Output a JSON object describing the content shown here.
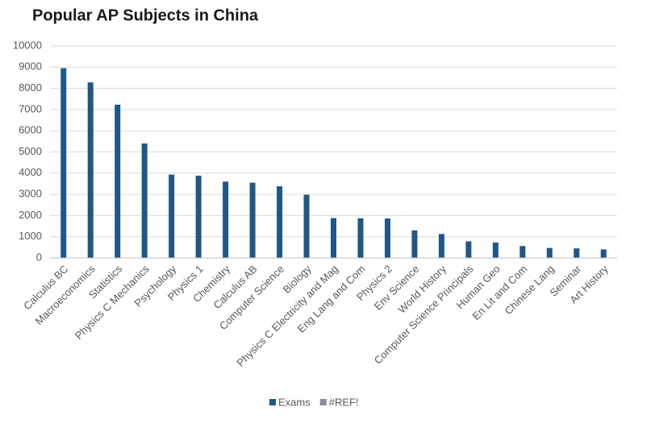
{
  "chart_data": {
    "type": "bar",
    "title": "Popular AP Subjects in China",
    "categories": [
      "Calculus BC",
      "Macroeconomics",
      "Statistics",
      "Physics C Mechanics",
      "Psychology",
      "Physics 1",
      "Chemistry",
      "Calculus AB",
      "Computer Science",
      "Biology",
      "Physics C Electricity and Mag",
      "Eng Lang and Com",
      "Physics 2",
      "Env Science",
      "World History",
      "Computer Science Principals",
      "Human Geo",
      "En Lit and Com",
      "Chinese Lang",
      "Seminar",
      "Art History"
    ],
    "series": [
      {
        "name": "Exams",
        "color": "#1f5788",
        "values": [
          8950,
          8280,
          7230,
          5400,
          3930,
          3880,
          3600,
          3550,
          3380,
          2980,
          1880,
          1870,
          1860,
          1300,
          1130,
          780,
          730,
          560,
          470,
          450,
          400
        ]
      },
      {
        "name": "#REF!",
        "color": "#8c8c99",
        "values": [
          null,
          null,
          null,
          null,
          null,
          null,
          null,
          null,
          null,
          null,
          null,
          null,
          null,
          null,
          null,
          null,
          null,
          null,
          null,
          null,
          null
        ]
      }
    ],
    "ylim": [
      0,
      10000
    ],
    "yticks": [
      0,
      1000,
      2000,
      3000,
      4000,
      5000,
      6000,
      7000,
      8000,
      9000,
      10000
    ],
    "grid": true
  }
}
